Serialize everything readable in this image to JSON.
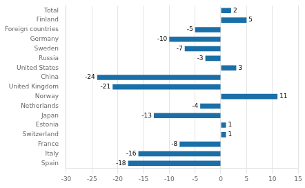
{
  "chart_data": {
    "type": "bar",
    "orientation": "horizontal",
    "categories": [
      "Spain",
      "Italy",
      "France",
      "Switzerland",
      "Estonia",
      "Japan",
      "Netherlands",
      "Norway",
      "United Kingdom",
      "China",
      "United States",
      "Russia",
      "Sweden",
      "Germany",
      "Foreign countries",
      "Finland",
      "Total"
    ],
    "values": [
      -18,
      -16,
      -8,
      1,
      1,
      -13,
      -4,
      11,
      -21,
      -24,
      3,
      -3,
      -7,
      -10,
      -5,
      5,
      2
    ],
    "color": "#1a6fa8",
    "xlim": [
      -30,
      15
    ],
    "xticks": [
      -30,
      -25,
      -20,
      -15,
      -10,
      -5,
      0,
      5,
      10,
      15
    ],
    "grid": true,
    "data_labels": true
  }
}
